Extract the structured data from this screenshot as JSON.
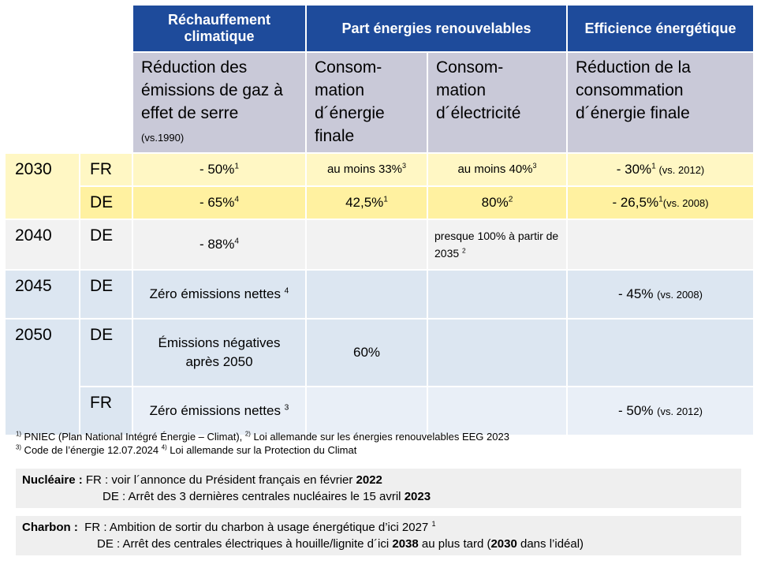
{
  "header": {
    "groups": [
      "Réchauffement climatique",
      "Part énergies renouvelables",
      "Efficience énergétique"
    ],
    "subheaders": [
      [
        {
          "text": "Réduction des émissions de gaz à effet de serre\n"
        },
        {
          "text": "(vs.1990)",
          "style": "small"
        }
      ],
      [
        {
          "text": "Consom-\nmation\nd´énergie\nfinale"
        }
      ],
      [
        {
          "text": "Consom-\nmation\nd´électricité"
        }
      ],
      [
        {
          "text": "Réduction de la\nconsommation\nd´énergie finale"
        }
      ]
    ]
  },
  "table": {
    "years": [
      {
        "year": "2030",
        "rows": [
          {
            "country": "FR",
            "cells": [
              [
                {
                  "text": "- 50%"
                },
                {
                  "text": "1",
                  "style": "sup"
                }
              ],
              [
                {
                  "text": "au moins 33%"
                },
                {
                  "text": "3",
                  "style": "sup"
                }
              ],
              [
                {
                  "text": "au moins 40%"
                },
                {
                  "text": "3",
                  "style": "sup"
                }
              ],
              [
                {
                  "text": "- 30%"
                },
                {
                  "text": "1",
                  "style": "sup"
                },
                {
                  "text": " (vs. 2012)",
                  "style": "small"
                }
              ]
            ]
          },
          {
            "country": "DE",
            "cells": [
              [
                {
                  "text": "- 65%"
                },
                {
                  "text": "4",
                  "style": "sup"
                }
              ],
              [
                {
                  "text": "42,5%"
                },
                {
                  "text": "1",
                  "style": "sup"
                }
              ],
              [
                {
                  "text": "80%"
                },
                {
                  "text": "2",
                  "style": "sup"
                }
              ],
              [
                {
                  "text": "- 26,5%"
                },
                {
                  "text": "1",
                  "style": "sup"
                },
                {
                  "text": "(vs. 2008)",
                  "style": "small"
                }
              ]
            ]
          }
        ]
      },
      {
        "year": "2040",
        "rows": [
          {
            "country": "DE",
            "cells": [
              [
                {
                  "text": "- 88%"
                },
                {
                  "text": "4",
                  "style": "sup"
                }
              ],
              null,
              [
                {
                  "text": "presque 100% à partir de 2035 "
                },
                {
                  "text": "2",
                  "style": "sup"
                }
              ],
              null
            ]
          }
        ]
      },
      {
        "year": "2045",
        "rows": [
          {
            "country": "DE",
            "cells": [
              [
                {
                  "text": "Zéro émissions nettes "
                },
                {
                  "text": "4",
                  "style": "sup"
                }
              ],
              null,
              null,
              [
                {
                  "text": "- 45% "
                },
                {
                  "text": "(vs. 2008)",
                  "style": "small"
                }
              ]
            ]
          }
        ]
      },
      {
        "year": "2050",
        "rows": [
          {
            "country": "DE",
            "cells": [
              [
                {
                  "text": "Émissions négatives après 2050"
                }
              ],
              [
                {
                  "text": "60%"
                }
              ],
              null,
              null
            ]
          },
          {
            "country": "FR",
            "cells": [
              [
                {
                  "text": "Zéro émissions nettes "
                },
                {
                  "text": "3",
                  "style": "sup"
                }
              ],
              null,
              null,
              [
                {
                  "text": "- 50% "
                },
                {
                  "text": "(vs. 2012)",
                  "style": "small"
                }
              ]
            ]
          }
        ]
      }
    ]
  },
  "footnotes": [
    [
      {
        "text": "1)",
        "style": "sup"
      },
      {
        "text": " PNIEC (Plan National Intégré Énergie – Climat), "
      },
      {
        "text": "2)",
        "style": "sup"
      },
      {
        "text": " Loi allemande sur les énergies renouvelables EEG 2023"
      }
    ],
    [
      {
        "text": "3)",
        "style": "sup"
      },
      {
        "text": " Code de l’énergie 12.07.2024 "
      },
      {
        "text": "4)",
        "style": "sup"
      },
      {
        "text": " Loi allemande sur la Protection du Climat"
      }
    ]
  ],
  "boxes": [
    {
      "label": "Nucléaire :",
      "lines": [
        [
          {
            "text": " FR : voir l´annonce du Président français en février "
          },
          {
            "text": "2022",
            "style": "b"
          }
        ],
        [
          {
            "text": "DE : Arrêt des 3 dernières centrales nucléaires le 15 avril "
          },
          {
            "text": "2023",
            "style": "b"
          }
        ]
      ]
    },
    {
      "label": "Charbon :",
      "lines": [
        [
          {
            "text": "  FR : Ambition de sortir du charbon à usage énergétique d’ici 2027 "
          },
          {
            "text": "1",
            "style": "sup"
          }
        ],
        [
          {
            "text": "DE : Arrêt des centrales électriques à houille/lignite d´ici "
          },
          {
            "text": "2038",
            "style": "b"
          },
          {
            "text": " au plus tard ("
          },
          {
            "text": "2030",
            "style": "b"
          },
          {
            "text": " dans l’idéal)"
          }
        ]
      ]
    }
  ]
}
